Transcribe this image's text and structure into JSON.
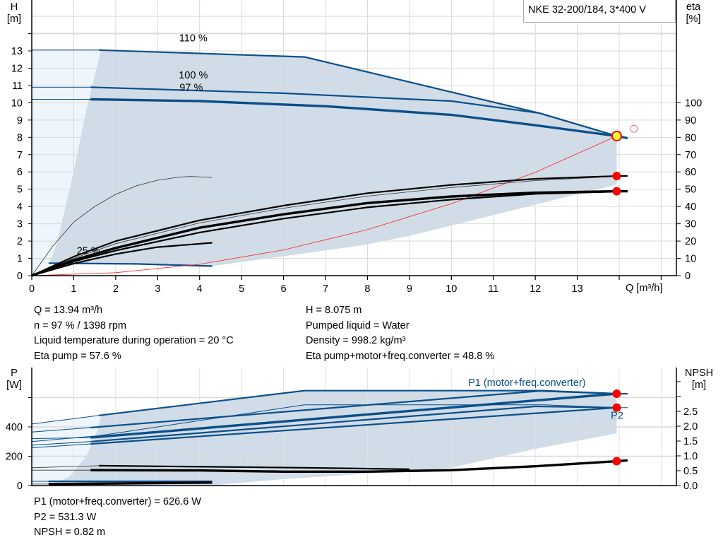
{
  "colors": {
    "curve_blue": "#0b4f8a",
    "shade": "#d0dce8",
    "shade_light": "#eef5fd",
    "grid": "#d9d9d9",
    "point_red": "#ff0000",
    "operating_point": "#ffff33",
    "system_curve": "#ff2020"
  },
  "legend_box": "NKE 32-200/184, 3*400 V",
  "top_info": {
    "left": [
      "Q = 13.94 m³/h",
      "n = 97 % / 1398 rpm",
      "Liquid temperature during operation = 20 °C",
      "Eta pump = 57.6 %"
    ],
    "right": [
      "H = 8.075 m",
      "Pumped liquid = Water",
      "Density = 998.2 kg/m³",
      "Eta pump+motor+freq.converter = 48.8 %"
    ]
  },
  "bottom_info": [
    "P1 (motor+freq.converter) = 626.6 W",
    "P2 = 531.3 W",
    "NPSH = 0.82 m"
  ],
  "chart_data": [
    {
      "type": "line",
      "title": "NKE 32-200/184, 3*400 V",
      "xlabel": "Q [m³/h]",
      "ylabel_left": [
        "H",
        "[m]"
      ],
      "ylabel_right": [
        "eta",
        "[%]"
      ],
      "xlim": [
        0,
        15
      ],
      "ylim_left": [
        0,
        15
      ],
      "ylim_right": [
        0,
        150
      ],
      "x_ticks": [
        "0",
        "1",
        "2",
        "3",
        "4",
        "5",
        "6",
        "7",
        "8",
        "9",
        "10",
        "11",
        "12",
        "13"
      ],
      "y_left_ticks": [
        "0",
        "1",
        "2",
        "3",
        "4",
        "5",
        "6",
        "7",
        "8",
        "9",
        "10",
        "11",
        "12",
        "13"
      ],
      "y_right_ticks": [
        "0",
        "10",
        "20",
        "30",
        "40",
        "50",
        "60",
        "70",
        "80",
        "90",
        "100"
      ],
      "grid": true,
      "curve_labels": [
        {
          "text": "110 %",
          "q": 3.85,
          "h": 13.55
        },
        {
          "text": "100 %",
          "q": 3.85,
          "h": 11.4
        },
        {
          "text": "97 %",
          "q": 3.8,
          "h": 10.7
        },
        {
          "text": "25 %",
          "q": 1.35,
          "h": 1.25
        }
      ],
      "operating_area": [
        [
          1.6,
          13.05
        ],
        [
          6.5,
          12.65
        ],
        [
          12.1,
          9.4
        ],
        [
          13.94,
          8.075
        ],
        [
          13.94,
          5.27
        ],
        [
          9,
          2.3
        ],
        [
          7.86,
          1.75
        ],
        [
          4.3,
          0.55
        ],
        [
          0.42,
          0.72
        ],
        [
          0.6,
          1.9
        ],
        [
          0.98,
          5.8
        ],
        [
          1.3,
          9.6
        ],
        [
          1.65,
          13.05
        ]
      ],
      "light_area": [
        [
          0,
          0
        ],
        [
          0,
          13.05
        ],
        [
          1.65,
          13.05
        ],
        [
          1.3,
          9.6
        ],
        [
          0.98,
          5.8
        ],
        [
          0.6,
          1.9
        ],
        [
          0.42,
          0.72
        ],
        [
          0,
          0
        ]
      ],
      "series": [
        {
          "axis": "H",
          "style": "thin-blue",
          "points": [
            [
              0,
              13.05
            ],
            [
              1.6,
              13.05
            ]
          ]
        },
        {
          "axis": "H",
          "style": "blue",
          "points": [
            [
              1.6,
              13.05
            ],
            [
              6.5,
              12.65
            ],
            [
              12.1,
              9.4
            ],
            [
              13.94,
              8.075
            ]
          ]
        },
        {
          "axis": "H",
          "style": "thin-blue",
          "points": [
            [
              0,
              10.9
            ],
            [
              1.4,
              10.9
            ]
          ]
        },
        {
          "axis": "H",
          "style": "blue",
          "points": [
            [
              1.4,
              10.9
            ],
            [
              6,
              10.55
            ],
            [
              10,
              10.1
            ],
            [
              12.1,
              9.4
            ],
            [
              13.94,
              8.075
            ]
          ]
        },
        {
          "axis": "H",
          "style": "thin-blue",
          "points": [
            [
              0,
              10.2
            ],
            [
              1.4,
              10.2
            ]
          ]
        },
        {
          "axis": "H",
          "style": "thick-blue",
          "points": [
            [
              1.4,
              10.2
            ],
            [
              4,
              10.1
            ],
            [
              7,
              9.8
            ],
            [
              10,
              9.3
            ],
            [
              12,
              8.7
            ],
            [
              13.94,
              8.075
            ],
            [
              14.2,
              7.95
            ]
          ]
        },
        {
          "axis": "H",
          "style": "blue",
          "points": [
            [
              0.4,
              0.72
            ],
            [
              2.5,
              0.68
            ],
            [
              4.3,
              0.55
            ]
          ]
        },
        {
          "axis": "H",
          "style": "system",
          "points": [
            [
              0,
              0
            ],
            [
              2,
              0.17
            ],
            [
              4,
              0.66
            ],
            [
              6,
              1.49
            ],
            [
              8,
              2.66
            ],
            [
              10,
              4.16
            ],
            [
              12,
              5.98
            ],
            [
              13.94,
              8.075
            ]
          ]
        },
        {
          "axis": "eta",
          "style": "thin-black",
          "points": [
            [
              0,
              0
            ],
            [
              0.5,
              17
            ],
            [
              1,
              31
            ],
            [
              1.5,
              40
            ],
            [
              2,
              47
            ],
            [
              2.5,
              52
            ],
            [
              3,
              55.2
            ],
            [
              3.5,
              57
            ],
            [
              3.8,
              57.4
            ],
            [
              4.3,
              56.8
            ]
          ]
        },
        {
          "axis": "eta",
          "style": "black",
          "points": [
            [
              0,
              0
            ],
            [
              1,
              7
            ],
            [
              2,
              12.5
            ],
            [
              3,
              16.5
            ],
            [
              4.3,
              19
            ]
          ]
        },
        {
          "axis": "eta",
          "style": "black",
          "points": [
            [
              0,
              0
            ],
            [
              1,
              11
            ],
            [
              2,
              20
            ],
            [
              4,
              32
            ],
            [
              6,
              40.5
            ],
            [
              8,
              47.7
            ],
            [
              10,
              52.5
            ],
            [
              12,
              56
            ],
            [
              13.94,
              57.6
            ],
            [
              14.2,
              57.7
            ]
          ]
        },
        {
          "axis": "eta",
          "style": "thin-black",
          "points": [
            [
              0,
              0
            ],
            [
              1,
              10
            ],
            [
              2,
              18.5
            ],
            [
              4,
              30.5
            ],
            [
              6,
              39
            ],
            [
              8,
              46
            ],
            [
              10,
              51
            ],
            [
              12,
              55
            ],
            [
              13.94,
              57.4
            ]
          ]
        },
        {
          "axis": "eta",
          "style": "thick-black",
          "points": [
            [
              0,
              0
            ],
            [
              1,
              9
            ],
            [
              2,
              16
            ],
            [
              4,
              27.7
            ],
            [
              6,
              35.5
            ],
            [
              8,
              42
            ],
            [
              10,
              45.8
            ],
            [
              12,
              48
            ],
            [
              13.94,
              48.8
            ],
            [
              14.2,
              48.8
            ]
          ]
        },
        {
          "axis": "eta",
          "style": "black",
          "points": [
            [
              0,
              0
            ],
            [
              1,
              8.2
            ],
            [
              2,
              14.5
            ],
            [
              4,
              25
            ],
            [
              6,
              33
            ],
            [
              8,
              39.5
            ],
            [
              10,
              44
            ],
            [
              12,
              47.3
            ],
            [
              13.94,
              48.6
            ]
          ]
        }
      ],
      "markers": [
        {
          "name": "operating-point",
          "q": 13.94,
          "axis": "H",
          "value": 8.075
        },
        {
          "name": "eta-pump-point",
          "q": 13.94,
          "axis": "eta",
          "value": 57.6
        },
        {
          "name": "eta-total-point",
          "q": 13.94,
          "axis": "eta",
          "value": 48.8
        },
        {
          "name": "requested-duty-point",
          "q": 14.35,
          "axis": "H",
          "value": 8.5
        }
      ]
    },
    {
      "type": "line",
      "ylabel_left": [
        "P",
        "[W]"
      ],
      "ylabel_right": [
        "NPSH",
        "[m]"
      ],
      "xlim": [
        0,
        15
      ],
      "ylim_left": [
        0,
        800
      ],
      "ylim_right": [
        0,
        3.5
      ],
      "y_left_ticks": [
        "0",
        "200",
        "400"
      ],
      "y_right_ticks": [
        "0.0",
        "0.5",
        "1.0",
        "1.5",
        "2.0",
        "2.5"
      ],
      "grid": true,
      "curve_labels": [
        {
          "text": "P1 (motor+freq.converter)",
          "q": 11.8,
          "p": 680
        },
        {
          "text": "P2",
          "q": 13.95,
          "p": 455
        }
      ],
      "operating_area": [
        [
          1.6,
          478
        ],
        [
          6.5,
          647
        ],
        [
          12.2,
          647
        ],
        [
          13.94,
          626.6
        ],
        [
          13.94,
          356
        ],
        [
          12,
          250
        ],
        [
          10,
          122
        ],
        [
          7.5,
          72
        ],
        [
          5.97,
          43
        ],
        [
          4.3,
          2
        ],
        [
          0.4,
          0
        ],
        [
          0.9,
          60
        ],
        [
          1.3,
          200
        ],
        [
          1.55,
          360
        ],
        [
          1.65,
          478
        ]
      ],
      "light_area": [
        [
          0,
          0
        ],
        [
          0,
          420
        ],
        [
          1.65,
          478
        ],
        [
          1.55,
          360
        ],
        [
          1.3,
          200
        ],
        [
          0.9,
          60
        ],
        [
          0.4,
          0
        ]
      ],
      "series": [
        {
          "axis": "P",
          "style": "thin-blue",
          "points": [
            [
              0,
              420
            ],
            [
              1.6,
              478
            ]
          ]
        },
        {
          "axis": "P",
          "style": "blue",
          "points": [
            [
              1.6,
              478
            ],
            [
              6.5,
              647
            ],
            [
              12.2,
              647
            ],
            [
              13.94,
              626.6
            ],
            [
              14.2,
              626
            ]
          ]
        },
        {
          "axis": "P",
          "style": "thin-blue",
          "points": [
            [
              0,
              365
            ],
            [
              1.4,
              395
            ]
          ]
        },
        {
          "axis": "P",
          "style": "blue",
          "points": [
            [
              1.4,
              395
            ],
            [
              12.1,
              645
            ],
            [
              13.94,
              626.6
            ]
          ]
        },
        {
          "axis": "P",
          "style": "thin-blue",
          "points": [
            [
              0,
              320
            ],
            [
              1.4,
              327
            ]
          ]
        },
        {
          "axis": "P",
          "style": "thick-blue",
          "points": [
            [
              1.4,
              327
            ],
            [
              13.94,
              626.6
            ]
          ]
        },
        {
          "axis": "P",
          "style": "thin-blue",
          "points": [
            [
              0,
              300
            ],
            [
              1.6,
              340
            ],
            [
              6.5,
              551
            ],
            [
              12.2,
              551
            ],
            [
              13.94,
              531.3
            ],
            [
              14.2,
              531
            ]
          ]
        },
        {
          "axis": "P",
          "style": "thin-blue",
          "points": [
            [
              0,
              275
            ],
            [
              1.4,
              300
            ]
          ]
        },
        {
          "axis": "P",
          "style": "blue",
          "points": [
            [
              1.4,
              300
            ],
            [
              12,
              540
            ],
            [
              13.94,
              531.3
            ]
          ]
        },
        {
          "axis": "P",
          "style": "thin-blue",
          "points": [
            [
              0,
              258
            ],
            [
              1.4,
              284
            ]
          ]
        },
        {
          "axis": "P",
          "style": "blue",
          "points": [
            [
              1.4,
              284
            ],
            [
              13.94,
              531.3
            ]
          ]
        },
        {
          "axis": "P",
          "style": "thin-blue",
          "points": [
            [
              0,
              29
            ],
            [
              0.4,
              29
            ]
          ]
        },
        {
          "axis": "P",
          "style": "blue",
          "points": [
            [
              0.4,
              29
            ],
            [
              4.3,
              29
            ]
          ]
        },
        {
          "axis": "NPSH",
          "style": "thin-black",
          "points": [
            [
              0,
              0.6
            ],
            [
              1.6,
              0.67
            ],
            [
              6.5,
              0.6
            ],
            [
              9,
              0.55
            ]
          ]
        },
        {
          "axis": "NPSH",
          "style": "black",
          "points": [
            [
              1.6,
              0.67
            ],
            [
              6.5,
              0.6
            ],
            [
              9,
              0.55
            ]
          ]
        },
        {
          "axis": "NPSH",
          "style": "thin-black",
          "points": [
            [
              0,
              0.52
            ],
            [
              1.4,
              0.52
            ]
          ]
        },
        {
          "axis": "NPSH",
          "style": "thick-black",
          "points": [
            [
              1.4,
              0.52
            ],
            [
              4,
              0.51
            ],
            [
              6,
              0.47
            ],
            [
              8,
              0.47
            ],
            [
              10,
              0.52
            ],
            [
              12,
              0.65
            ],
            [
              13.94,
              0.82
            ],
            [
              14.2,
              0.85
            ]
          ]
        },
        {
          "axis": "NPSH",
          "style": "thin-black",
          "points": [
            [
              0,
              0.05
            ],
            [
              0.4,
              0.05
            ]
          ]
        },
        {
          "axis": "NPSH",
          "style": "thick-black",
          "points": [
            [
              0.4,
              0.05
            ],
            [
              4.3,
              0.1
            ]
          ]
        }
      ],
      "markers": [
        {
          "name": "p1-point",
          "q": 13.94,
          "axis": "P",
          "value": 626.6
        },
        {
          "name": "p2-point",
          "q": 13.94,
          "axis": "P",
          "value": 531.3
        },
        {
          "name": "npsh-point",
          "q": 13.94,
          "axis": "NPSH",
          "value": 0.82
        }
      ]
    }
  ]
}
